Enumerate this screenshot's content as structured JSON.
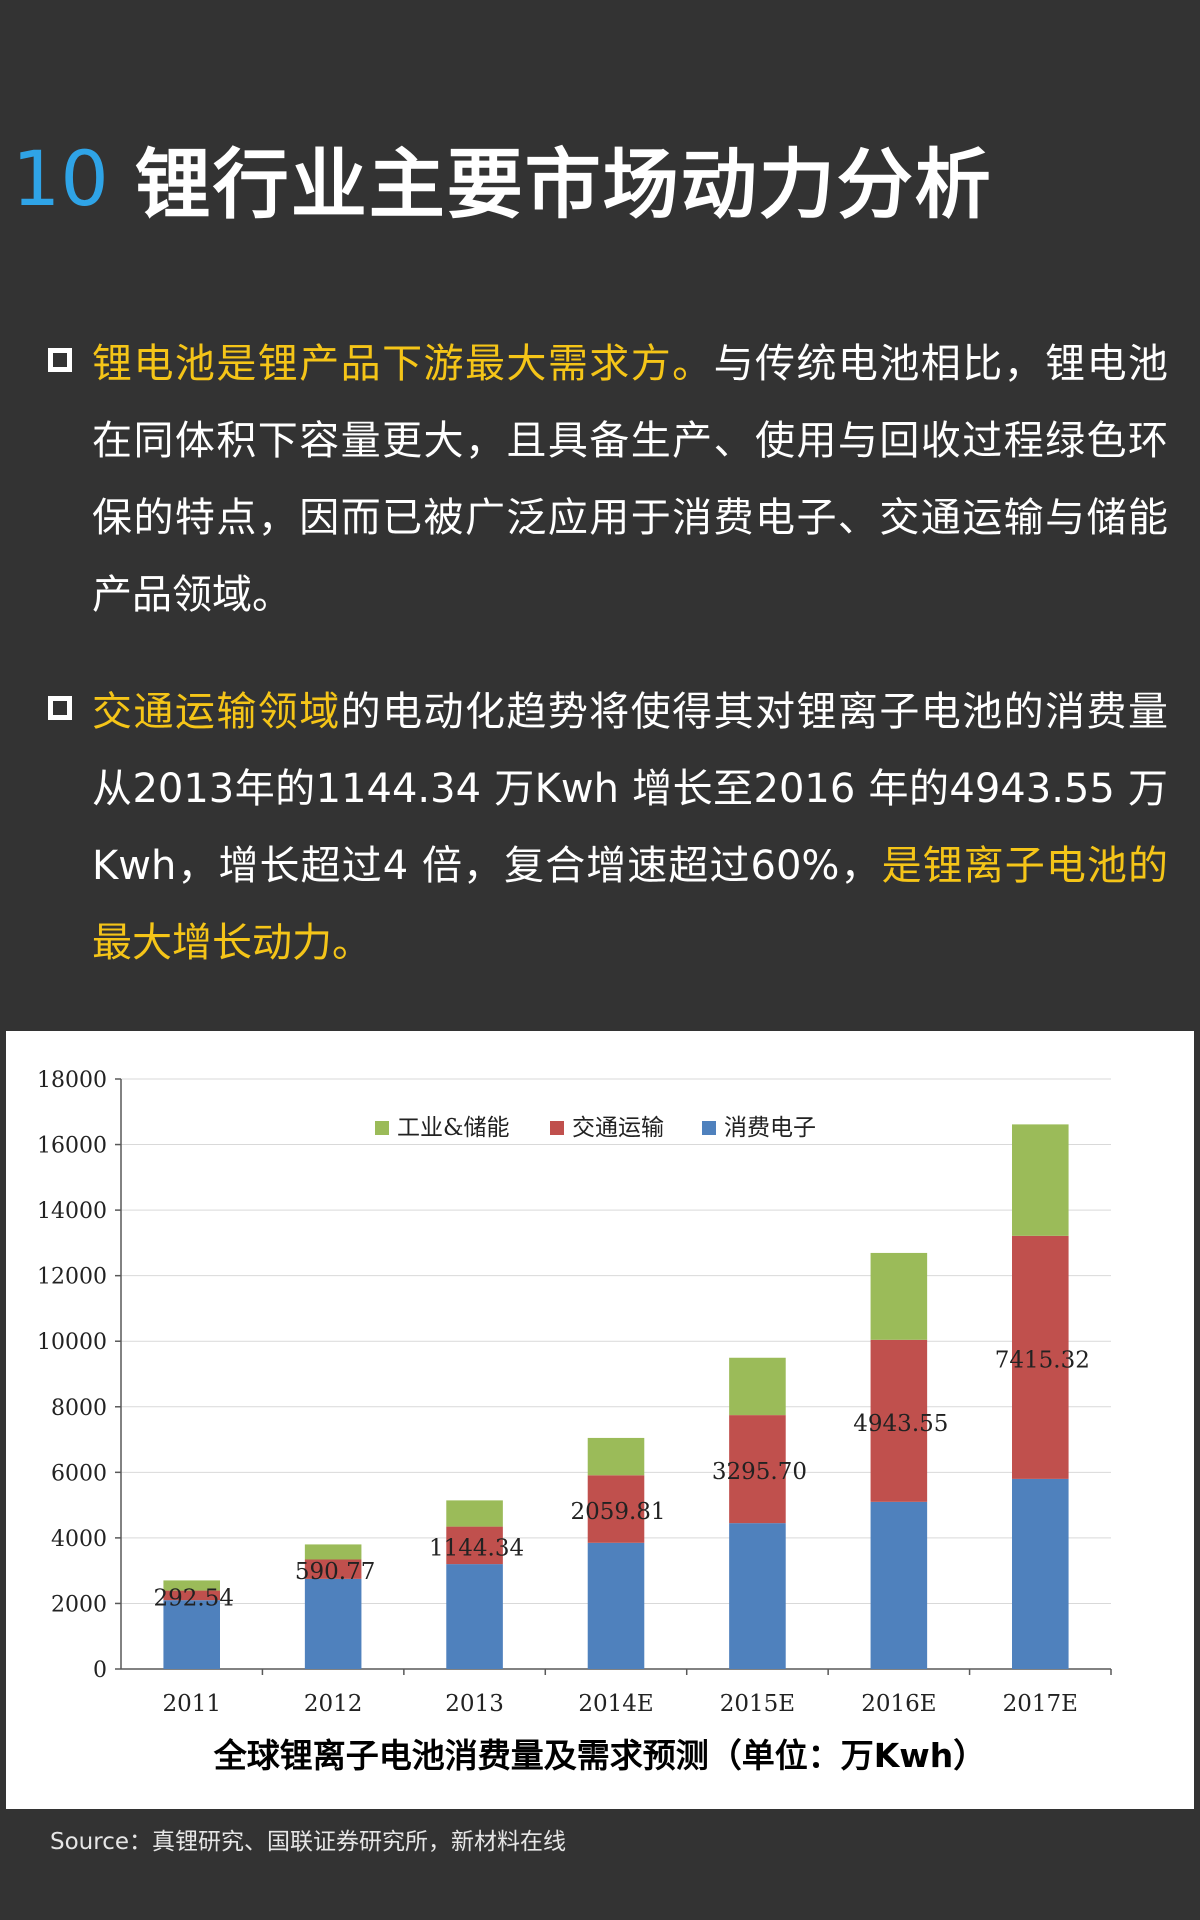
{
  "title": {
    "number": "10",
    "text": "锂行业主要市场动力分析"
  },
  "bullets": [
    {
      "highlight": "锂电池是锂产品下游最大需求方。",
      "text": "与传统电池相比，锂电池在同体积下容量更大，且具备生产、使用与回收过程绿色环保的特点，因而已被广泛应用于消费电子、交通运输与储能产品领域。"
    },
    {
      "highlight": "交通运输领域",
      "text": "的电动化趋势将使得其对锂离子电池的消费量从2013年的1144.34 万Kwh 增长至2016 年的4943.55 万Kwh，增长超过4 倍，复合增速超过60%，",
      "highlight_end": "是锂离子电池的最大增长动力。"
    }
  ],
  "chart_data": {
    "type": "bar",
    "stacked": true,
    "title": "全球锂离子电池消费量及需求预测（单位：万Kwh）",
    "categories": [
      "2011",
      "2012",
      "2013",
      "2014E",
      "2015E",
      "2016E",
      "2017E"
    ],
    "series": [
      {
        "name": "消费电子",
        "color": "#4f81bd",
        "values": [
          2100,
          2750,
          3200,
          3850,
          4450,
          5100,
          5800
        ]
      },
      {
        "name": "交通运输",
        "color": "#c0504d",
        "values": [
          292.54,
          590.77,
          1144.34,
          2059.81,
          3295.7,
          4943.55,
          7415.32
        ]
      },
      {
        "name": "工业&储能",
        "color": "#9bbb59",
        "values": [
          310,
          460,
          800,
          1140,
          1750,
          2650,
          3400
        ]
      }
    ],
    "data_labels": [
      "292.54",
      "590.77",
      "1144.34",
      "2059.81",
      "3295.70",
      "4943.55",
      "7415.32"
    ],
    "legend_order": [
      "工业&储能",
      "交通运输",
      "消费电子"
    ],
    "legend_position": "top-center",
    "ylim": [
      0,
      18000
    ],
    "yticks": [
      0,
      2000,
      4000,
      6000,
      8000,
      10000,
      12000,
      14000,
      16000,
      18000
    ],
    "grid": true
  },
  "source": "Source：真锂研究、国联证券研究所，新材料在线"
}
